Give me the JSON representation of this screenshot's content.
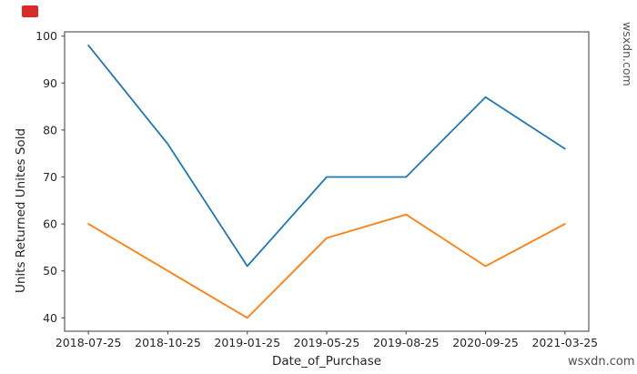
{
  "chart_data": {
    "type": "line",
    "title": "",
    "xlabel": "Date_of_Purchase",
    "ylabel": "Units Returned   Unites Sold",
    "ylabel_parts": [
      "Units Returned",
      "Unites Sold"
    ],
    "categories": [
      "2018-07-25",
      "2018-10-25",
      "2019-01-25",
      "2019-05-25",
      "2019-08-25",
      "2020-09-25",
      "2021-03-25"
    ],
    "series": [
      {
        "name": "Unites Sold",
        "color": "#1f77b4",
        "values": [
          98,
          77,
          51,
          70,
          70,
          87,
          76
        ]
      },
      {
        "name": "Units Returned",
        "color": "#ff7f0e",
        "values": [
          60,
          50,
          40,
          57,
          62,
          51,
          60
        ]
      }
    ],
    "yticks": [
      40,
      50,
      60,
      70,
      80,
      90,
      100
    ],
    "ylim": [
      37.15,
      100.9
    ],
    "grid": false,
    "legend_position": "none",
    "text_color": "#262626",
    "spine_color": "#5a5a5a"
  },
  "watermarks": {
    "bottom_right": "wsxdn.com",
    "right_vertical": "wsxdn.com",
    "color": "#4d4d4d"
  },
  "badge": {
    "color": "#d92b2b"
  }
}
